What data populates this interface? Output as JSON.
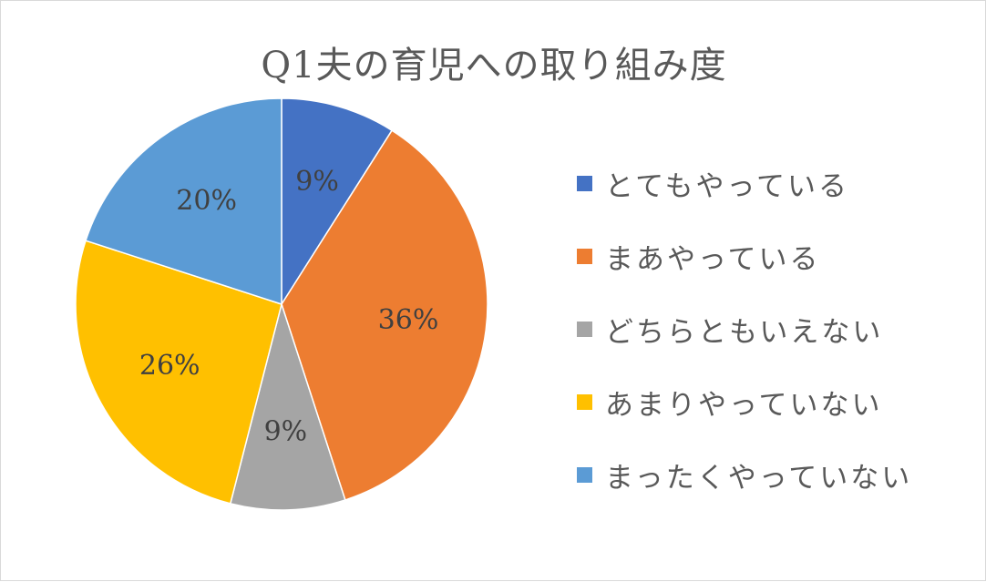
{
  "chart_data": {
    "type": "pie",
    "title": "Q1夫の育児への取り組み度",
    "legend_position": "right",
    "slices": [
      {
        "label": "とてもやっている",
        "value": 9,
        "display": "9%",
        "color": "#4472C4"
      },
      {
        "label": "まあやっている",
        "value": 36,
        "display": "36%",
        "color": "#ED7D31"
      },
      {
        "label": "どちらともいえない",
        "value": 9,
        "display": "9%",
        "color": "#A5A5A5"
      },
      {
        "label": "あまりやっていない",
        "value": 26,
        "display": "26%",
        "color": "#FFC000"
      },
      {
        "label": "まったくやっていない",
        "value": 20,
        "display": "20%",
        "color": "#5B9BD5"
      }
    ]
  }
}
